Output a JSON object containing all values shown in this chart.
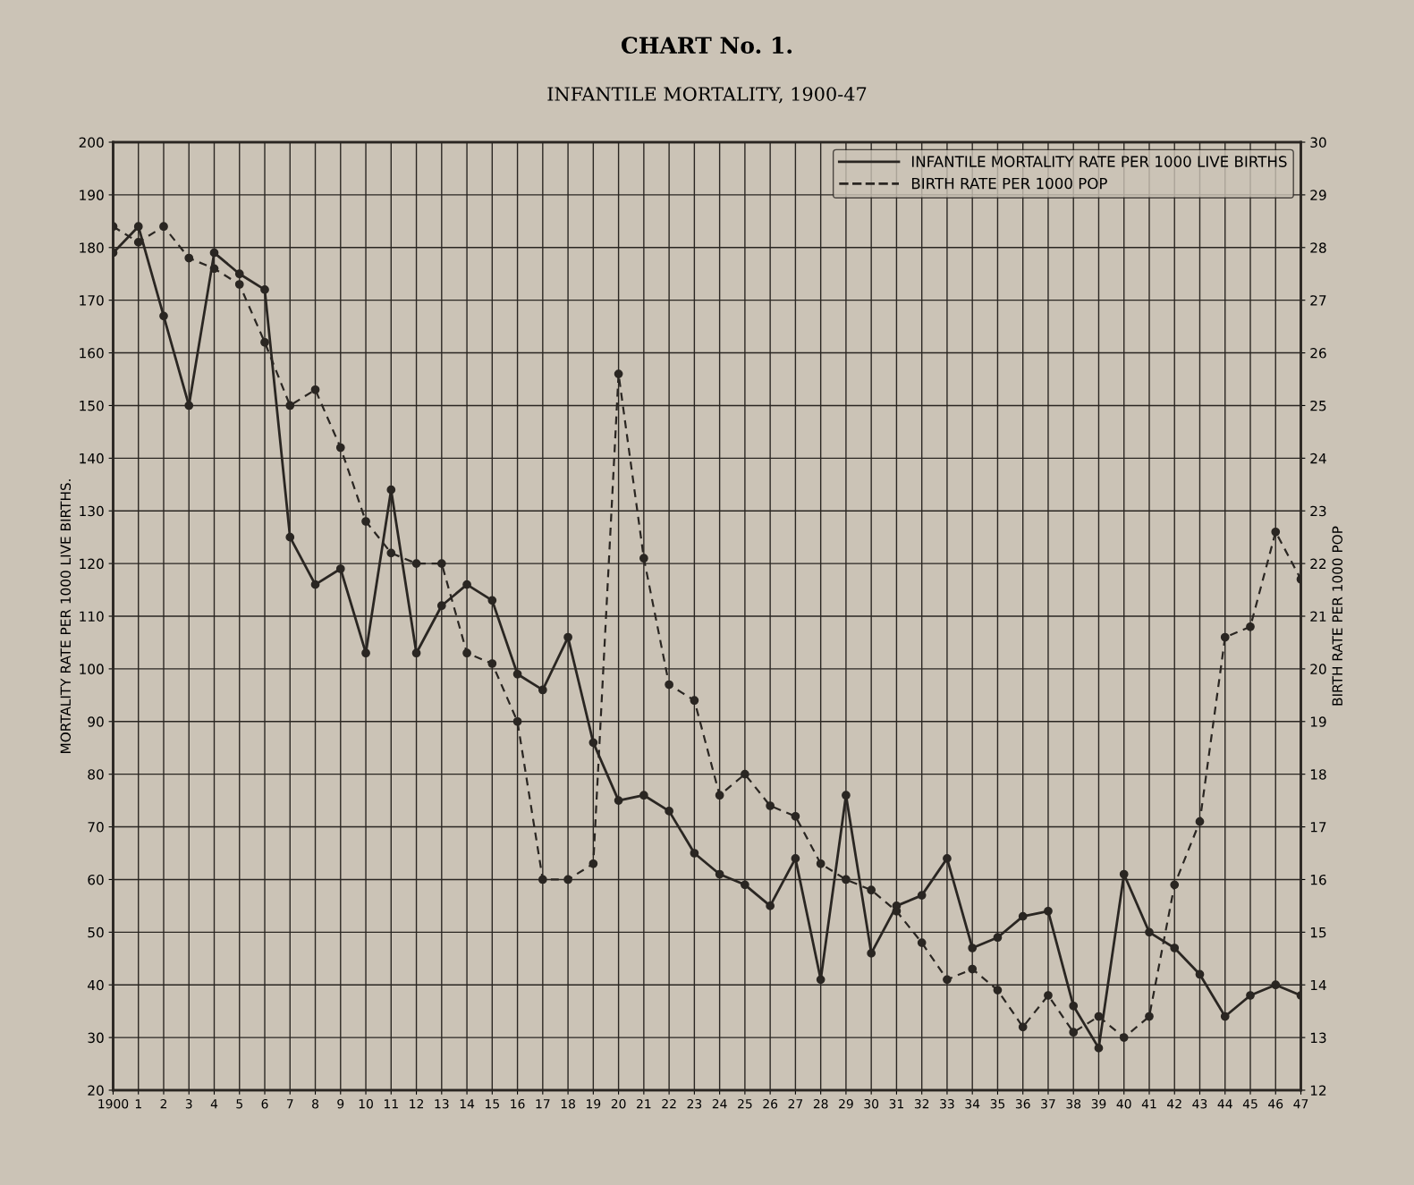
{
  "chart_data": {
    "type": "line",
    "title": "CHART No. 1.",
    "subtitle": "INFANTILE MORTALITY, 1900-47",
    "ylabel": "MORTALITY RATE PER 1000 LIVE BIRTHS.",
    "y2label": "BIRTH RATE PER 1000 POP",
    "categories": [
      "1900",
      "1",
      "2",
      "3",
      "4",
      "5",
      "6",
      "7",
      "8",
      "9",
      "10",
      "11",
      "12",
      "13",
      "14",
      "15",
      "16",
      "17",
      "18",
      "19",
      "20",
      "21",
      "22",
      "23",
      "24",
      "25",
      "26",
      "27",
      "28",
      "29",
      "30",
      "31",
      "32",
      "33",
      "34",
      "35",
      "36",
      "37",
      "38",
      "39",
      "40",
      "41",
      "42",
      "43",
      "44",
      "45",
      "46",
      "47"
    ],
    "series": [
      {
        "name": "INFANTILE MORTALITY RATE PER 1000 LIVE BIRTHS",
        "color": "#2a2622",
        "line_style": "solid",
        "axis": "y",
        "values": [
          179,
          184,
          167,
          150,
          179,
          175,
          172,
          125,
          116,
          119,
          103,
          134,
          103,
          112,
          116,
          113,
          99,
          96,
          106,
          86,
          75,
          76,
          73,
          65,
          61,
          59,
          55,
          64,
          41,
          76,
          46,
          55,
          57,
          64,
          47,
          49,
          53,
          54,
          36,
          28,
          61,
          50,
          47,
          42,
          34,
          38,
          40,
          38
        ]
      },
      {
        "name": "BIRTH RATE PER 1000 POP",
        "color": "#2a2622",
        "line_style": "dashed",
        "axis": "y2",
        "values": [
          28.4,
          28.1,
          28.4,
          27.8,
          27.6,
          27.3,
          26.2,
          25.0,
          25.3,
          24.2,
          22.8,
          22.2,
          22.0,
          22.0,
          20.3,
          20.1,
          19.0,
          16.0,
          16.0,
          16.3,
          25.6,
          22.1,
          19.7,
          19.4,
          17.6,
          18.0,
          17.4,
          17.2,
          16.3,
          16.0,
          15.8,
          15.4,
          14.8,
          14.1,
          14.3,
          13.9,
          13.2,
          13.8,
          13.1,
          13.4,
          13.0,
          13.4,
          15.9,
          17.1,
          20.6,
          20.8,
          22.6,
          21.7
        ]
      }
    ],
    "ylim": [
      20,
      200
    ],
    "yticks": [
      20,
      30,
      40,
      50,
      60,
      70,
      80,
      90,
      100,
      110,
      120,
      130,
      140,
      150,
      160,
      170,
      180,
      190,
      200
    ],
    "y2lim": [
      12,
      30
    ],
    "y2ticks": [
      12,
      13,
      14,
      15,
      16,
      17,
      18,
      19,
      20,
      21,
      22,
      23,
      24,
      25,
      26,
      27,
      28,
      29,
      30
    ],
    "grid": true,
    "legend": "top right",
    "marker": "circle"
  }
}
